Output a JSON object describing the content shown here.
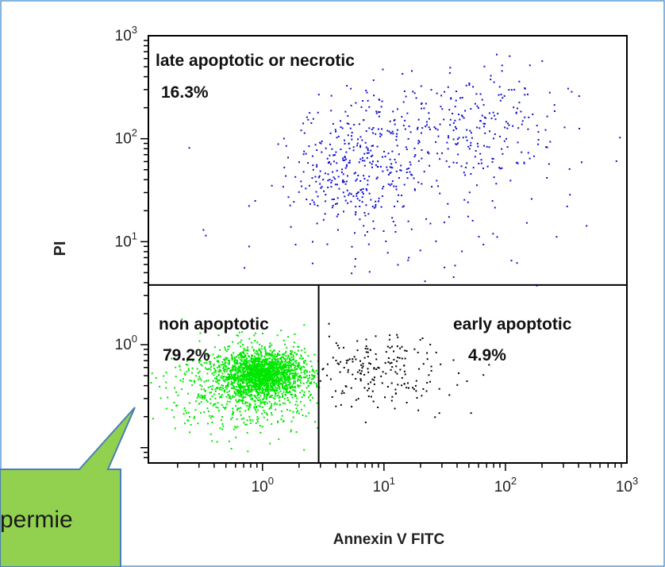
{
  "colors": {
    "frame_border": "#5b9bd5",
    "axis": "#000000",
    "late_apoptotic": "#1010cc",
    "non_apoptotic": "#00e600",
    "early_apoptotic": "#000000",
    "callout_fill": "#92d050",
    "callout_border": "#4a7fb5"
  },
  "chart_data": {
    "type": "scatter",
    "title": "",
    "xlabel": "Annexin V FITC",
    "ylabel": "PI",
    "xscale": "log",
    "yscale": "log",
    "xlim": [
      0.115,
      1000
    ],
    "ylim": [
      0.071,
      1000
    ],
    "grid": false,
    "x_ticks": [
      {
        "value": 1,
        "base": "10",
        "exp": "0"
      },
      {
        "value": 10,
        "base": "10",
        "exp": "1"
      },
      {
        "value": 100,
        "base": "10",
        "exp": "2"
      },
      {
        "value": 1000,
        "base": "10",
        "exp": "3"
      }
    ],
    "y_ticks": [
      {
        "value": 1,
        "base": "10",
        "exp": "0"
      },
      {
        "value": 10,
        "base": "10",
        "exp": "1"
      },
      {
        "value": 100,
        "base": "10",
        "exp": "2"
      },
      {
        "value": 1000,
        "base": "10",
        "exp": "3"
      }
    ],
    "gates": {
      "x": 2.9,
      "y": 3.8
    },
    "quadrants": [
      {
        "label": "late apoptotic or necrotic",
        "percent": "16.3%",
        "color": "late_apoptotic",
        "xrange": [
          0.115,
          1000
        ],
        "yrange": [
          3.8,
          1000
        ]
      },
      {
        "label": "non apoptotic",
        "percent": "79.2%",
        "color": "non_apoptotic",
        "xrange": [
          0.115,
          2.9
        ],
        "yrange": [
          0.071,
          3.8
        ]
      },
      {
        "label": "early apoptotic",
        "percent": "4.9%",
        "color": "early_apoptotic",
        "xrange": [
          2.9,
          1000
        ],
        "yrange": [
          0.071,
          3.8
        ]
      }
    ],
    "annotations": [
      {
        "text": "permie",
        "type": "callout",
        "points_to": {
          "x": 0.16,
          "y": 0.18
        }
      }
    ]
  }
}
